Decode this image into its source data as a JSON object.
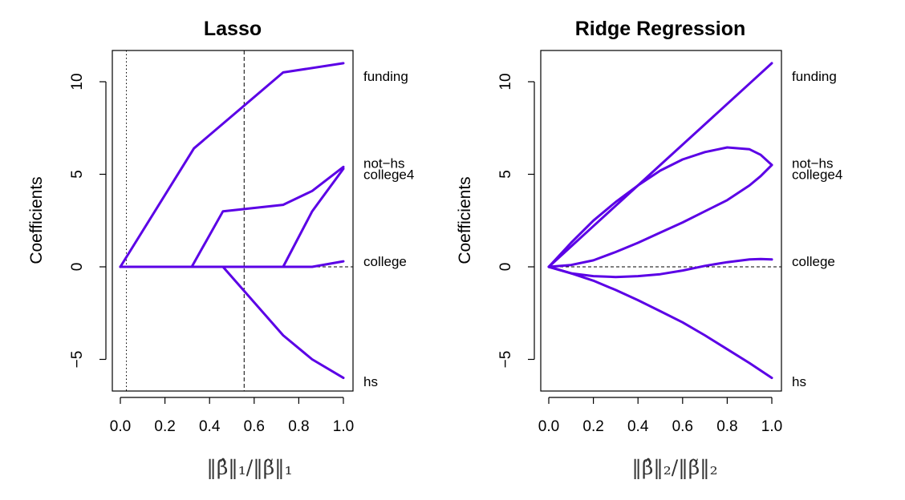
{
  "chart_data": [
    {
      "type": "line",
      "title": "Lasso",
      "xlabel": "‖β̂‖₁/‖β̃‖₁",
      "ylabel": "Coefficients",
      "xlim": [
        0,
        1
      ],
      "ylim": [
        -6.5,
        11.5
      ],
      "xticks": [
        "0.0",
        "0.2",
        "0.4",
        "0.6",
        "0.8",
        "1.0"
      ],
      "yticks": [
        "−5",
        "0",
        "5",
        "10"
      ],
      "grid": false,
      "series_color": "#5b00e6",
      "vlines": [
        {
          "x": 0.027,
          "style": "dotted"
        },
        {
          "x": 0.555,
          "style": "dashed"
        }
      ],
      "hline": {
        "y": 0,
        "style": "dashed"
      },
      "series": [
        {
          "name": "funding",
          "x": [
            0,
            0.33,
            0.73,
            1.0
          ],
          "y": [
            0,
            6.4,
            10.5,
            11.0
          ]
        },
        {
          "name": "not−hs",
          "x": [
            0,
            0.46,
            0.73,
            0.86,
            1.0
          ],
          "y": [
            0,
            0,
            0,
            3.0,
            5.3
          ]
        },
        {
          "name": "college4",
          "x": [
            0,
            0.32,
            0.46,
            0.73,
            0.86,
            1.0
          ],
          "y": [
            0,
            0,
            3.0,
            3.35,
            4.1,
            5.4
          ]
        },
        {
          "name": "college",
          "x": [
            0,
            0.86,
            1.0
          ],
          "y": [
            0,
            0,
            0.3
          ]
        },
        {
          "name": "hs",
          "x": [
            0,
            0.46,
            0.73,
            0.86,
            1.0
          ],
          "y": [
            0,
            0,
            -3.7,
            -5.0,
            -6.0
          ]
        }
      ]
    },
    {
      "type": "line",
      "title": "Ridge Regression",
      "xlabel": "‖β̂‖₂/‖β̃‖₂",
      "ylabel": "Coefficients",
      "xlim": [
        0,
        1
      ],
      "ylim": [
        -6.5,
        11.5
      ],
      "xticks": [
        "0.0",
        "0.2",
        "0.4",
        "0.6",
        "0.8",
        "1.0"
      ],
      "yticks": [
        "−5",
        "0",
        "5",
        "10"
      ],
      "grid": false,
      "series_color": "#5b00e6",
      "hline": {
        "y": 0,
        "style": "dashed"
      },
      "series": [
        {
          "name": "funding",
          "x": [
            0,
            0.1,
            0.2,
            0.3,
            0.4,
            0.5,
            0.6,
            0.7,
            0.8,
            0.9,
            1.0
          ],
          "y": [
            0,
            1.1,
            2.2,
            3.3,
            4.4,
            5.5,
            6.6,
            7.7,
            8.8,
            9.9,
            11.0
          ]
        },
        {
          "name": "not−hs",
          "x": [
            0,
            0.1,
            0.2,
            0.3,
            0.4,
            0.5,
            0.6,
            0.7,
            0.8,
            0.9,
            0.95,
            1.0
          ],
          "y": [
            0,
            1.3,
            2.5,
            3.5,
            4.4,
            5.2,
            5.8,
            6.2,
            6.45,
            6.35,
            6.05,
            5.5
          ]
        },
        {
          "name": "college4",
          "x": [
            0,
            0.1,
            0.2,
            0.3,
            0.4,
            0.5,
            0.6,
            0.7,
            0.8,
            0.9,
            0.95,
            1.0
          ],
          "y": [
            0,
            0.1,
            0.35,
            0.8,
            1.3,
            1.85,
            2.4,
            3.0,
            3.6,
            4.4,
            4.9,
            5.5
          ]
        },
        {
          "name": "college",
          "x": [
            0,
            0.1,
            0.2,
            0.3,
            0.4,
            0.5,
            0.6,
            0.7,
            0.8,
            0.9,
            0.95,
            1.0
          ],
          "y": [
            0,
            -0.35,
            -0.5,
            -0.55,
            -0.5,
            -0.4,
            -0.2,
            0.05,
            0.25,
            0.4,
            0.42,
            0.4
          ]
        },
        {
          "name": "hs",
          "x": [
            0,
            0.1,
            0.2,
            0.3,
            0.4,
            0.5,
            0.6,
            0.7,
            0.8,
            0.9,
            1.0
          ],
          "y": [
            0,
            -0.35,
            -0.75,
            -1.25,
            -1.8,
            -2.4,
            -3.0,
            -3.7,
            -4.45,
            -5.2,
            -6.0
          ]
        }
      ],
      "label_y": {
        "funding": 11.0,
        "not−hs": 5.8,
        "college4": 5.2,
        "college": 0.3,
        "hs": -6.0
      }
    }
  ]
}
